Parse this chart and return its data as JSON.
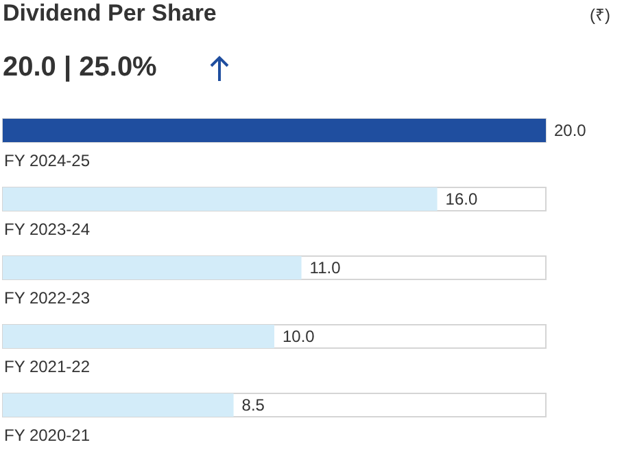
{
  "chart_data": {
    "type": "bar",
    "orientation": "horizontal",
    "title": "Dividend Per Share",
    "subtitle": "20.0 | 25.0%",
    "annotations": [
      "(₹)"
    ],
    "categories": [
      "FY 2024-25",
      "FY 2023-24",
      "FY 2022-23",
      "FY 2021-22",
      "FY 2020-21"
    ],
    "values": [
      20,
      16,
      11,
      10,
      8.5
    ],
    "colors": [
      "#1f4e9f",
      "#d3ecf9",
      "#d3ecf9",
      "#d3ecf9",
      "#d3ecf9"
    ],
    "value_labels": [
      "20.0",
      "16.0",
      "11.0",
      "10.0",
      "8.5"
    ]
  }
}
